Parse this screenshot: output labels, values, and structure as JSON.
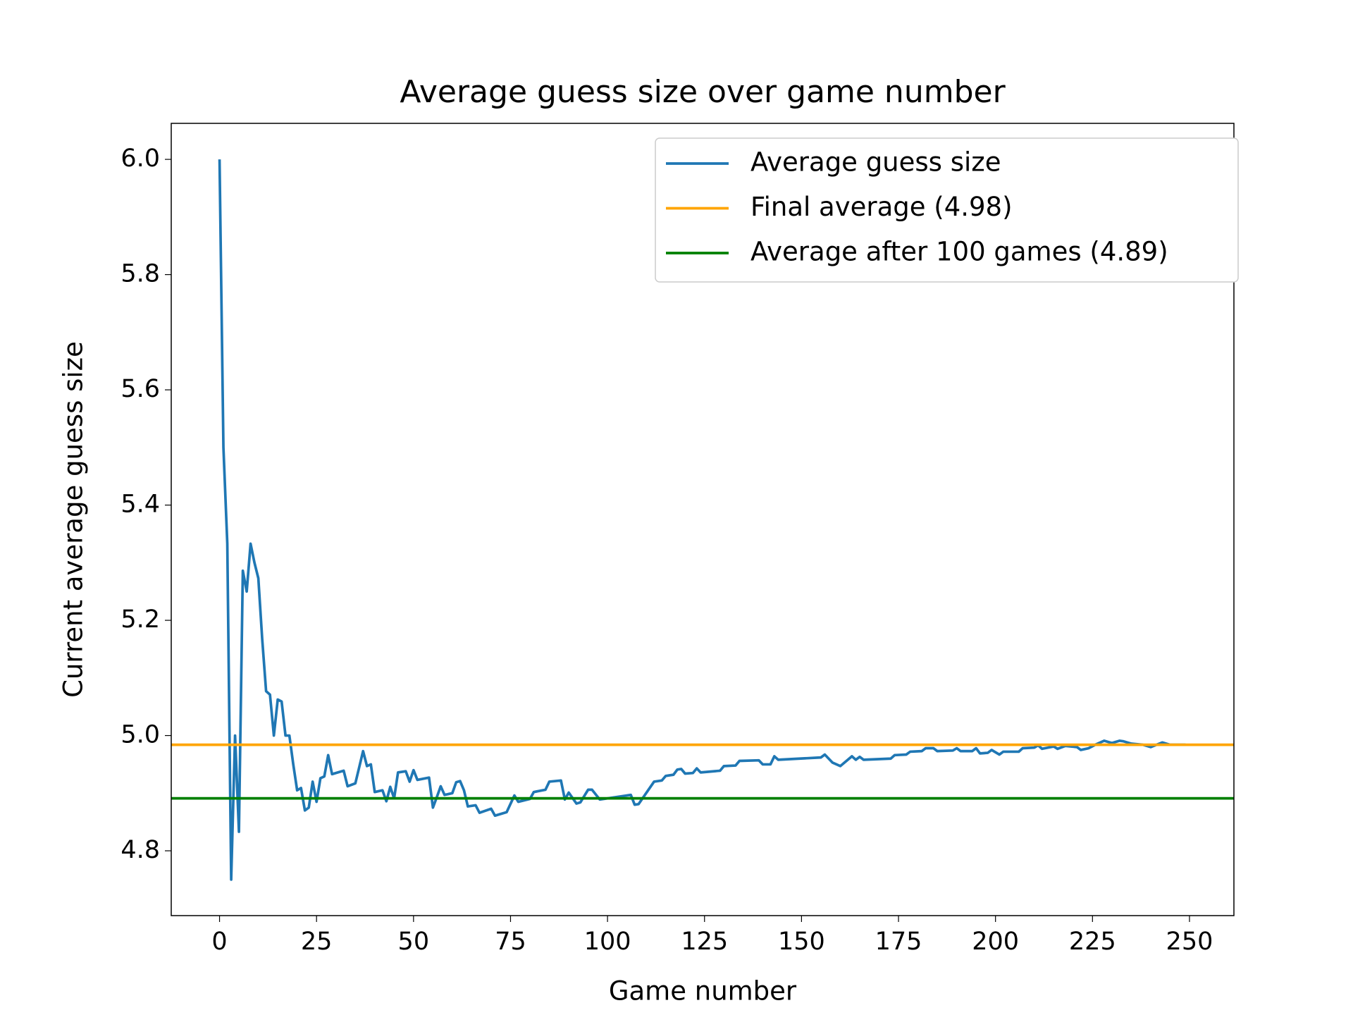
{
  "chart_data": {
    "type": "line",
    "title": "Average guess size over game number",
    "x_label": "Game number",
    "y_label": "Current average guess size",
    "xlim": [
      -12.45,
      261.45
    ],
    "ylim": [
      4.6875,
      6.0625
    ],
    "xticks": [
      0,
      25,
      50,
      75,
      100,
      125,
      150,
      175,
      200,
      225,
      250
    ],
    "yticks": [
      4.8,
      {
        "value": 5.0,
        "label": "5.0"
      },
      5.2,
      5.4,
      5.6,
      5.8,
      {
        "value": 6.0,
        "label": "6.0"
      }
    ],
    "legend": "upper right",
    "x": [
      0,
      1,
      2,
      3,
      4,
      5,
      6,
      7,
      8,
      9,
      10,
      11,
      12,
      13,
      14,
      15,
      16,
      17,
      18,
      19,
      20,
      21,
      22,
      23,
      24,
      25,
      26,
      27,
      28,
      29,
      32,
      33,
      35,
      37,
      38,
      39,
      40,
      42,
      43,
      44,
      45,
      46,
      48,
      49,
      50,
      51,
      54,
      55,
      56,
      57,
      58,
      60,
      61,
      62,
      63,
      64,
      66,
      67,
      70,
      71,
      74,
      76,
      77,
      80,
      81,
      84,
      85,
      88,
      89,
      90,
      92,
      93,
      95,
      96,
      98,
      106,
      107,
      108,
      112,
      114,
      115,
      117,
      118,
      119,
      120,
      122,
      123,
      124,
      129,
      130,
      133,
      134,
      139,
      140,
      142,
      143,
      144,
      155,
      156,
      158,
      160,
      163,
      164,
      165,
      166,
      173,
      174,
      177,
      178,
      181,
      182,
      184,
      185,
      189,
      190,
      191,
      194,
      195,
      196,
      198,
      199,
      201,
      202,
      206,
      207,
      210,
      211,
      212,
      215,
      216,
      218,
      221,
      222,
      224,
      226,
      228,
      230,
      232,
      233,
      235,
      238,
      240,
      243,
      245,
      249
    ],
    "series": [
      {
        "name": "Average guess size",
        "color": "#1f77b4",
        "values": [
          6.0,
          5.5,
          5.333,
          4.75,
          5.0,
          4.833,
          5.286,
          5.25,
          5.333,
          5.3,
          5.273,
          5.167,
          5.077,
          5.071,
          5.0,
          5.0625,
          5.059,
          5.0,
          5.0,
          4.95,
          4.905,
          4.909,
          4.87,
          4.875,
          4.92,
          4.885,
          4.926,
          4.929,
          4.966,
          4.933,
          4.939,
          4.912,
          4.917,
          4.973,
          4.947,
          4.95,
          4.902,
          4.905,
          4.886,
          4.911,
          4.891,
          4.936,
          4.938,
          4.92,
          4.94,
          4.923,
          4.927,
          4.875,
          4.893,
          4.912,
          4.897,
          4.9,
          4.919,
          4.921,
          4.905,
          4.877,
          4.879,
          4.866,
          4.873,
          4.861,
          4.867,
          4.896,
          4.885,
          4.89,
          4.902,
          4.906,
          4.92,
          4.922,
          4.889,
          4.901,
          4.882,
          4.884,
          4.906,
          4.906,
          4.889,
          4.897,
          4.88,
          4.881,
          4.92,
          4.922,
          4.93,
          4.932,
          4.941,
          4.942,
          4.934,
          4.935,
          4.943,
          4.936,
          4.939,
          4.947,
          4.948,
          4.956,
          4.957,
          4.95,
          4.95,
          4.964,
          4.958,
          4.962,
          4.967,
          4.953,
          4.947,
          4.964,
          4.958,
          4.963,
          4.958,
          4.96,
          4.966,
          4.967,
          4.972,
          4.973,
          4.978,
          4.978,
          4.973,
          4.974,
          4.978,
          4.973,
          4.973,
          4.978,
          4.969,
          4.97,
          4.975,
          4.967,
          4.972,
          4.972,
          4.978,
          4.979,
          4.983,
          4.977,
          4.981,
          4.977,
          4.982,
          4.98,
          4.975,
          4.978,
          4.985,
          4.991,
          4.987,
          4.991,
          4.99,
          4.986,
          4.984,
          4.98,
          4.988,
          4.984,
          4.984
        ]
      }
    ],
    "hlines": [
      {
        "name": "Final average (4.98)",
        "color": "#ffa500",
        "value": 4.984
      },
      {
        "name": "Average after 100 games (4.89)",
        "color": "#008000",
        "value": 4.891
      }
    ]
  }
}
